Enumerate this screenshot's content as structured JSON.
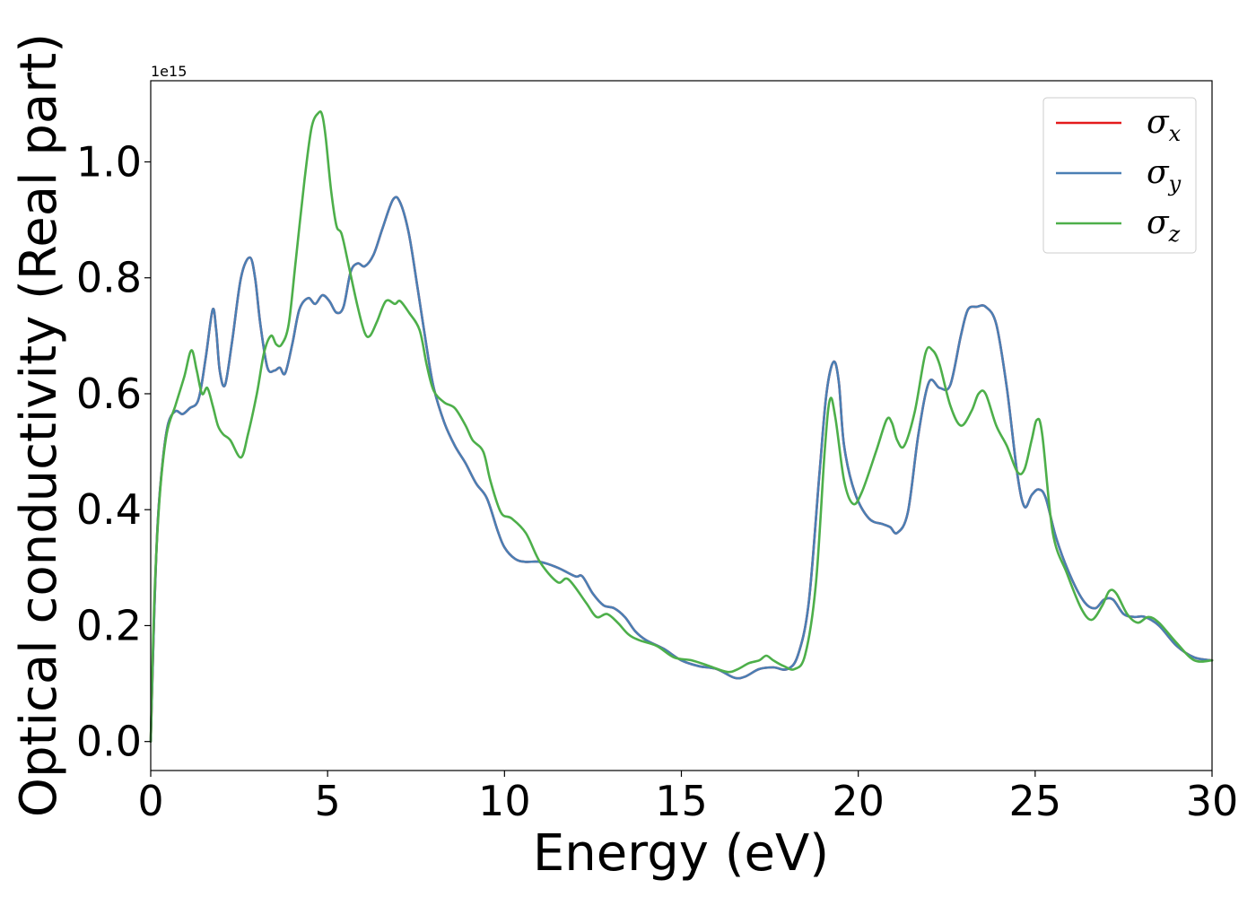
{
  "chart_data": {
    "type": "line",
    "title": "",
    "xlabel": "Energy (eV)",
    "ylabel": "Optical conductivity (Real part)",
    "y_offset_text": "1e15",
    "xlim": [
      0,
      30
    ],
    "ylim": [
      -0.05,
      1.14
    ],
    "y_scale": 1000000000000000.0,
    "x_ticks": [
      0,
      5,
      10,
      15,
      20,
      25,
      30
    ],
    "x_tick_labels": [
      "0",
      "5",
      "10",
      "15",
      "20",
      "25",
      "30"
    ],
    "y_ticks": [
      0.0,
      0.2,
      0.4,
      0.6,
      0.8,
      1.0
    ],
    "y_tick_labels": [
      "0.0",
      "0.2",
      "0.4",
      "0.6",
      "0.8",
      "1.0"
    ],
    "grid": false,
    "legend_position": "top-right",
    "series": [
      {
        "name": "σx",
        "symbol": "σ",
        "subscript": "x",
        "color": "#e41a1c",
        "x": [
          0,
          0.1,
          0.2,
          0.35,
          0.5,
          0.7,
          0.9,
          1.1,
          1.35,
          1.55,
          1.75,
          1.85,
          1.95,
          2.1,
          2.3,
          2.55,
          2.8,
          2.95,
          3.1,
          3.3,
          3.5,
          3.65,
          3.8,
          4.0,
          4.2,
          4.45,
          4.65,
          4.85,
          5.05,
          5.25,
          5.45,
          5.65,
          5.85,
          6.05,
          6.3,
          6.55,
          6.85,
          7.05,
          7.3,
          7.55,
          7.8,
          8.0,
          8.3,
          8.6,
          8.9,
          9.2,
          9.5,
          9.8,
          10.0,
          10.3,
          10.6,
          11.0,
          11.5,
          12.0,
          12.2,
          12.5,
          12.8,
          13.1,
          13.4,
          13.7,
          14.0,
          14.5,
          15.0,
          15.5,
          16.0,
          16.5,
          16.8,
          17.2,
          17.6,
          18.0,
          18.3,
          18.6,
          18.9,
          19.1,
          19.3,
          19.45,
          19.6,
          19.9,
          20.3,
          20.7,
          20.9,
          21.1,
          21.4,
          21.7,
          22.0,
          22.3,
          22.6,
          22.9,
          23.1,
          23.35,
          23.6,
          23.9,
          24.2,
          24.5,
          24.7,
          24.9,
          25.1,
          25.3,
          25.6,
          26.0,
          26.4,
          26.7,
          26.95,
          27.2,
          27.5,
          27.8,
          28.1,
          28.5,
          29.0,
          29.5,
          30.0
        ],
        "values": [
          0.0,
          0.22,
          0.38,
          0.49,
          0.55,
          0.57,
          0.565,
          0.575,
          0.59,
          0.66,
          0.745,
          0.71,
          0.64,
          0.615,
          0.69,
          0.8,
          0.835,
          0.8,
          0.72,
          0.645,
          0.64,
          0.645,
          0.635,
          0.685,
          0.745,
          0.765,
          0.755,
          0.77,
          0.76,
          0.74,
          0.75,
          0.81,
          0.825,
          0.82,
          0.84,
          0.885,
          0.935,
          0.93,
          0.875,
          0.78,
          0.68,
          0.61,
          0.55,
          0.51,
          0.48,
          0.445,
          0.42,
          0.365,
          0.335,
          0.315,
          0.31,
          0.31,
          0.3,
          0.285,
          0.285,
          0.255,
          0.235,
          0.23,
          0.215,
          0.19,
          0.175,
          0.16,
          0.14,
          0.13,
          0.125,
          0.11,
          0.112,
          0.125,
          0.128,
          0.125,
          0.15,
          0.24,
          0.46,
          0.6,
          0.655,
          0.62,
          0.51,
          0.43,
          0.385,
          0.375,
          0.37,
          0.36,
          0.395,
          0.53,
          0.62,
          0.61,
          0.615,
          0.7,
          0.745,
          0.75,
          0.75,
          0.72,
          0.61,
          0.46,
          0.405,
          0.425,
          0.435,
          0.42,
          0.35,
          0.285,
          0.24,
          0.23,
          0.245,
          0.245,
          0.22,
          0.215,
          0.215,
          0.2,
          0.165,
          0.145,
          0.14
        ]
      },
      {
        "name": "σy",
        "symbol": "σ",
        "subscript": "y",
        "color": "#4a7fb4",
        "x": [
          0,
          0.1,
          0.2,
          0.35,
          0.5,
          0.7,
          0.9,
          1.1,
          1.35,
          1.55,
          1.75,
          1.85,
          1.95,
          2.1,
          2.3,
          2.55,
          2.8,
          2.95,
          3.1,
          3.3,
          3.5,
          3.65,
          3.8,
          4.0,
          4.2,
          4.45,
          4.65,
          4.85,
          5.05,
          5.25,
          5.45,
          5.65,
          5.85,
          6.05,
          6.3,
          6.55,
          6.85,
          7.05,
          7.3,
          7.55,
          7.8,
          8.0,
          8.3,
          8.6,
          8.9,
          9.2,
          9.5,
          9.8,
          10.0,
          10.3,
          10.6,
          11.0,
          11.5,
          12.0,
          12.2,
          12.5,
          12.8,
          13.1,
          13.4,
          13.7,
          14.0,
          14.5,
          15.0,
          15.5,
          16.0,
          16.5,
          16.8,
          17.2,
          17.6,
          18.0,
          18.3,
          18.6,
          18.9,
          19.1,
          19.3,
          19.45,
          19.6,
          19.9,
          20.3,
          20.7,
          20.9,
          21.1,
          21.4,
          21.7,
          22.0,
          22.3,
          22.6,
          22.9,
          23.1,
          23.35,
          23.6,
          23.9,
          24.2,
          24.5,
          24.7,
          24.9,
          25.1,
          25.3,
          25.6,
          26.0,
          26.4,
          26.7,
          26.95,
          27.2,
          27.5,
          27.8,
          28.1,
          28.5,
          29.0,
          29.5,
          30.0
        ],
        "values": [
          0.0,
          0.22,
          0.38,
          0.49,
          0.55,
          0.57,
          0.565,
          0.575,
          0.59,
          0.66,
          0.745,
          0.71,
          0.64,
          0.615,
          0.69,
          0.8,
          0.835,
          0.8,
          0.72,
          0.645,
          0.64,
          0.645,
          0.635,
          0.685,
          0.745,
          0.765,
          0.755,
          0.77,
          0.76,
          0.74,
          0.75,
          0.81,
          0.825,
          0.82,
          0.84,
          0.885,
          0.935,
          0.93,
          0.875,
          0.78,
          0.68,
          0.61,
          0.55,
          0.51,
          0.48,
          0.445,
          0.42,
          0.365,
          0.335,
          0.315,
          0.31,
          0.31,
          0.3,
          0.285,
          0.285,
          0.255,
          0.235,
          0.23,
          0.215,
          0.19,
          0.175,
          0.16,
          0.14,
          0.13,
          0.125,
          0.11,
          0.112,
          0.125,
          0.128,
          0.125,
          0.15,
          0.24,
          0.46,
          0.6,
          0.655,
          0.62,
          0.51,
          0.43,
          0.385,
          0.375,
          0.37,
          0.36,
          0.395,
          0.53,
          0.62,
          0.61,
          0.615,
          0.7,
          0.745,
          0.75,
          0.75,
          0.72,
          0.61,
          0.46,
          0.405,
          0.425,
          0.435,
          0.42,
          0.35,
          0.285,
          0.24,
          0.23,
          0.245,
          0.245,
          0.22,
          0.215,
          0.215,
          0.2,
          0.165,
          0.145,
          0.14
        ]
      },
      {
        "name": "σz",
        "symbol": "σ",
        "subscript": "z",
        "color": "#4daf4a",
        "x": [
          0,
          0.1,
          0.25,
          0.45,
          0.7,
          0.95,
          1.15,
          1.3,
          1.45,
          1.6,
          1.75,
          1.9,
          2.05,
          2.25,
          2.55,
          2.75,
          3.0,
          3.2,
          3.4,
          3.55,
          3.7,
          3.9,
          4.1,
          4.35,
          4.55,
          4.75,
          4.85,
          4.95,
          5.1,
          5.25,
          5.4,
          5.6,
          5.85,
          6.05,
          6.2,
          6.4,
          6.65,
          6.9,
          7.05,
          7.3,
          7.6,
          7.8,
          8.0,
          8.3,
          8.6,
          8.9,
          9.1,
          9.4,
          9.6,
          9.9,
          10.2,
          10.6,
          11.0,
          11.5,
          11.8,
          12.3,
          12.6,
          12.9,
          13.2,
          13.5,
          13.8,
          14.3,
          14.8,
          15.3,
          15.8,
          16.3,
          16.6,
          16.9,
          17.2,
          17.4,
          17.6,
          17.9,
          18.2,
          18.5,
          18.8,
          19.05,
          19.2,
          19.35,
          19.6,
          19.85,
          20.1,
          20.5,
          20.8,
          20.95,
          21.1,
          21.3,
          21.6,
          21.9,
          22.1,
          22.3,
          22.6,
          22.9,
          23.2,
          23.4,
          23.6,
          23.9,
          24.2,
          24.5,
          24.7,
          24.9,
          25.05,
          25.2,
          25.5,
          25.9,
          26.3,
          26.6,
          26.9,
          27.1,
          27.3,
          27.6,
          27.9,
          28.2,
          28.5,
          29.0,
          29.5,
          30.0
        ],
        "values": [
          0.0,
          0.24,
          0.42,
          0.53,
          0.58,
          0.63,
          0.675,
          0.64,
          0.6,
          0.61,
          0.58,
          0.545,
          0.53,
          0.52,
          0.49,
          0.53,
          0.6,
          0.67,
          0.7,
          0.685,
          0.685,
          0.72,
          0.83,
          0.97,
          1.06,
          1.085,
          1.08,
          1.04,
          0.95,
          0.89,
          0.875,
          0.82,
          0.75,
          0.705,
          0.7,
          0.725,
          0.76,
          0.755,
          0.76,
          0.74,
          0.71,
          0.65,
          0.605,
          0.585,
          0.575,
          0.545,
          0.52,
          0.5,
          0.45,
          0.395,
          0.385,
          0.36,
          0.31,
          0.275,
          0.28,
          0.24,
          0.215,
          0.22,
          0.205,
          0.185,
          0.175,
          0.165,
          0.145,
          0.14,
          0.13,
          0.12,
          0.125,
          0.135,
          0.14,
          0.148,
          0.14,
          0.13,
          0.125,
          0.15,
          0.27,
          0.5,
          0.59,
          0.56,
          0.45,
          0.41,
          0.43,
          0.5,
          0.555,
          0.55,
          0.52,
          0.51,
          0.57,
          0.67,
          0.675,
          0.65,
          0.58,
          0.545,
          0.57,
          0.6,
          0.6,
          0.545,
          0.51,
          0.465,
          0.47,
          0.52,
          0.555,
          0.53,
          0.36,
          0.29,
          0.23,
          0.21,
          0.235,
          0.26,
          0.255,
          0.22,
          0.205,
          0.215,
          0.205,
          0.17,
          0.14,
          0.14
        ]
      }
    ]
  }
}
